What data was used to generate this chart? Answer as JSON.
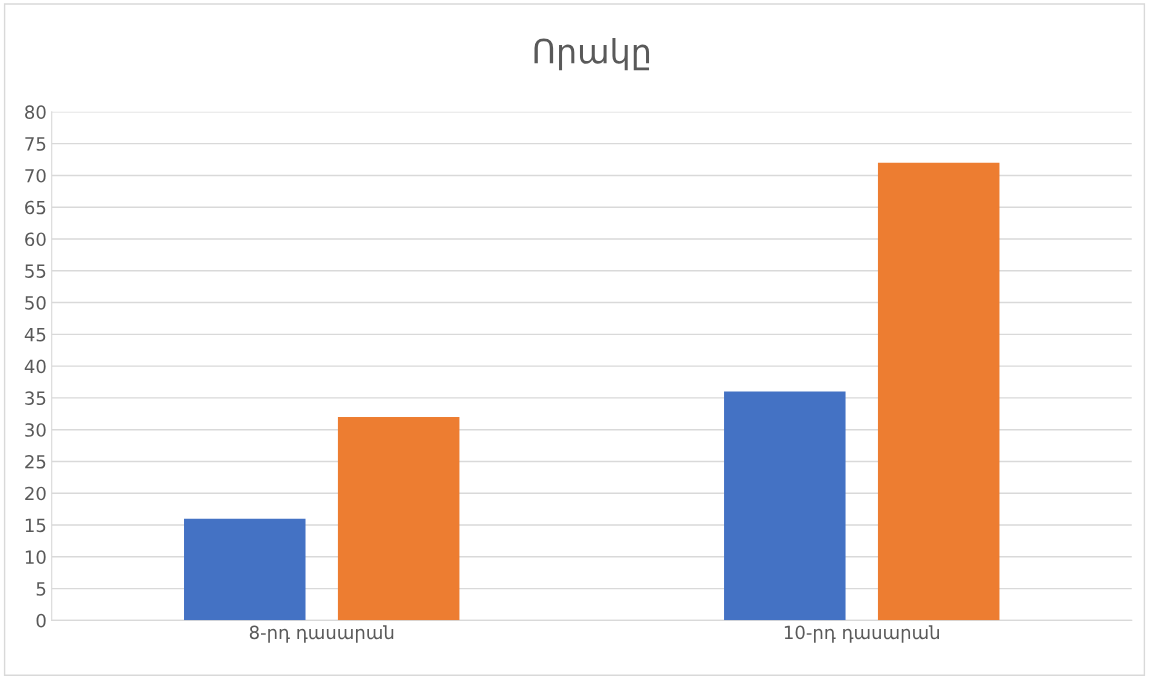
{
  "chart_data": {
    "type": "bar",
    "title": "Որակը",
    "categories": [
      "8-րդ դասարան",
      "10-րդ դասարան"
    ],
    "series": [
      {
        "color": "#4472c4",
        "values": [
          16,
          36
        ]
      },
      {
        "color": "#ed7d31",
        "values": [
          32,
          72
        ]
      }
    ],
    "ylim": [
      0,
      80
    ],
    "yticks": [
      0,
      5,
      10,
      15,
      20,
      25,
      30,
      35,
      40,
      45,
      50,
      55,
      60,
      65,
      70,
      75,
      80
    ],
    "grid": "y"
  }
}
